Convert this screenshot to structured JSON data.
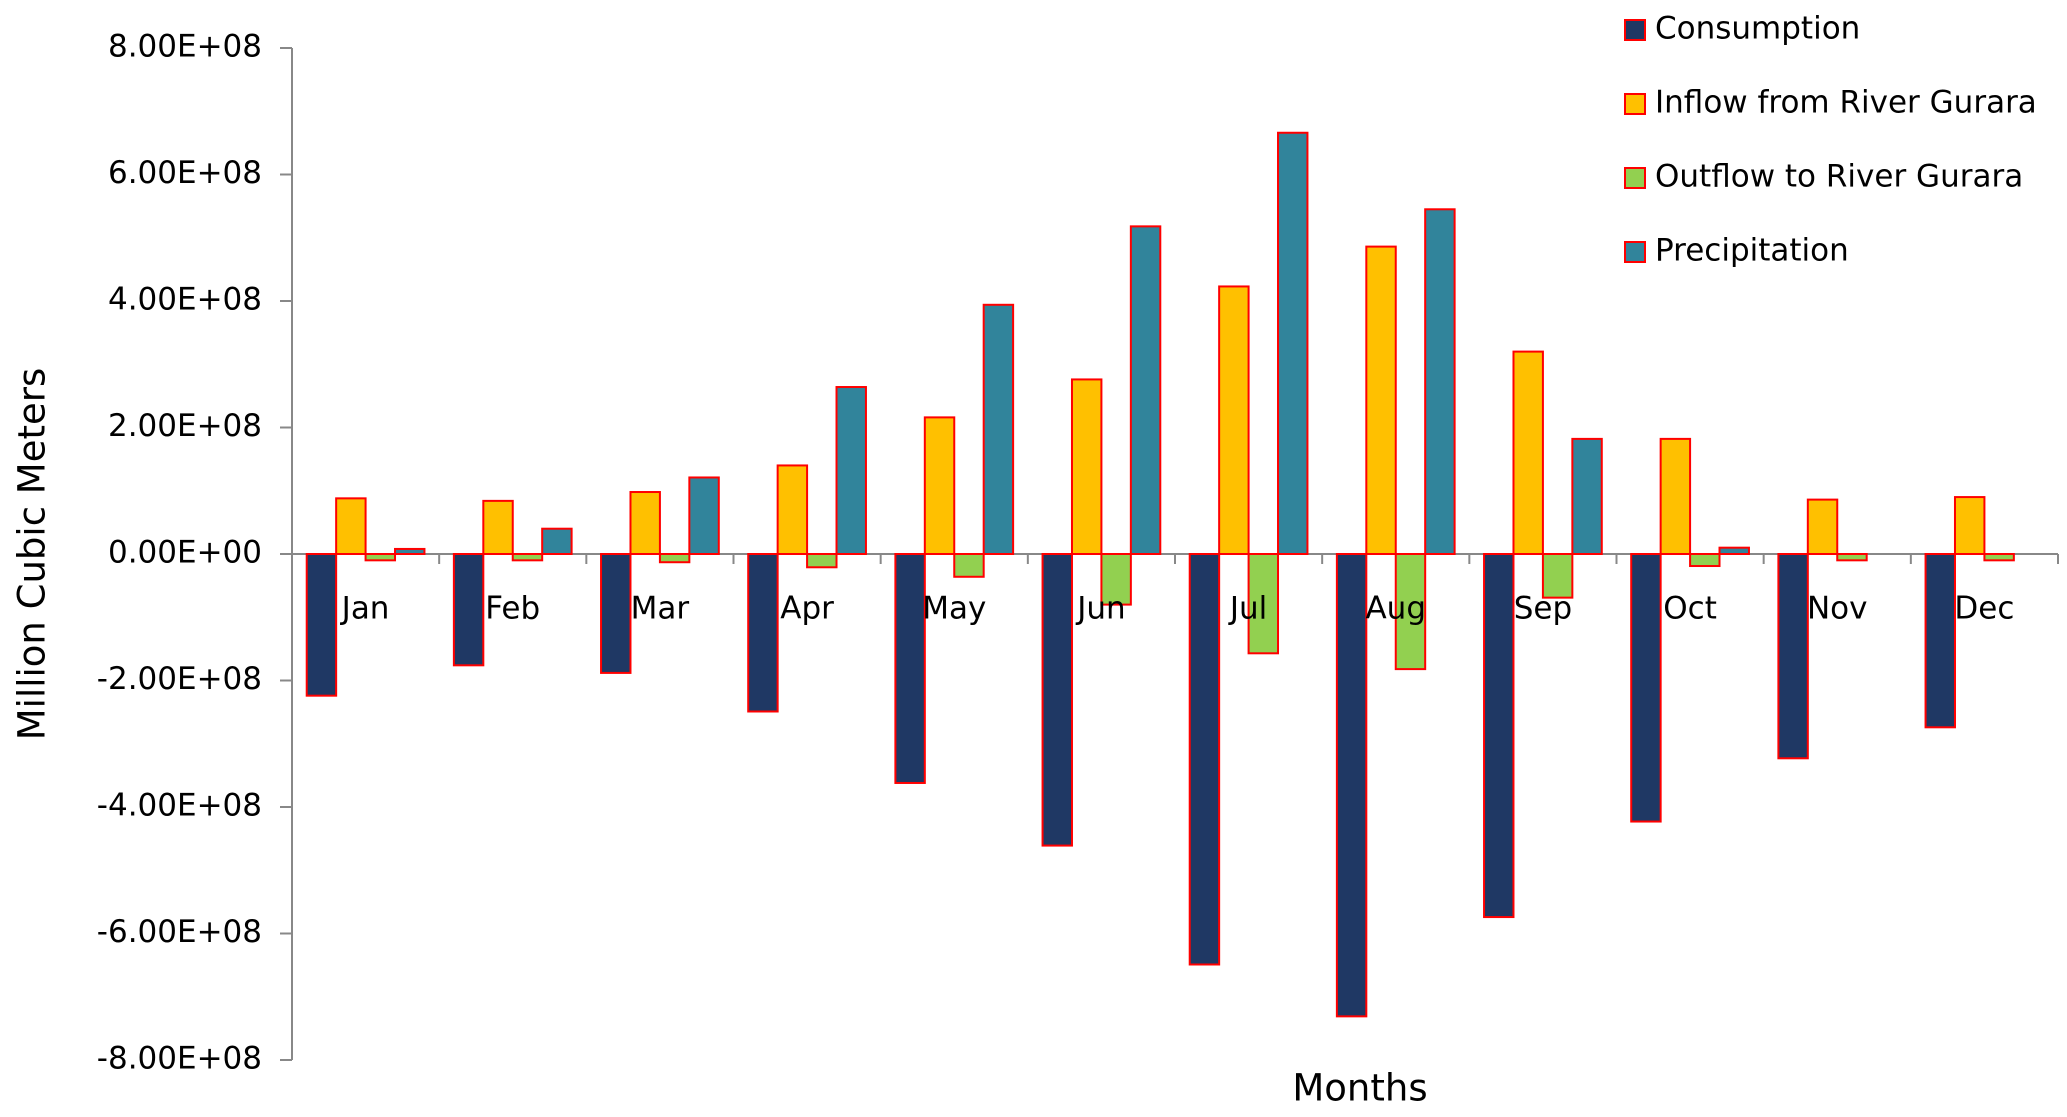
{
  "chart_data": {
    "type": "bar",
    "x_label": "Months",
    "y_label": "Million Cubic Meters",
    "categories": [
      "Jan",
      "Feb",
      "Mar",
      "Apr",
      "May",
      "Jun",
      "Jul",
      "Aug",
      "Sep",
      "Oct",
      "Nov",
      "Dec"
    ],
    "series": [
      {
        "name": "Consumption",
        "color": "#1f3864",
        "values": [
          -224000000,
          -176000000,
          -188000000,
          -249000000,
          -362000000,
          -461000000,
          -649000000,
          -731000000,
          -574000000,
          -423000000,
          -323000000,
          -274000000
        ]
      },
      {
        "name": "Inflow from River Gurara",
        "color": "#ffc000",
        "values": [
          88000000,
          84000000,
          98000000,
          140000000,
          216000000,
          276000000,
          423000000,
          486000000,
          320000000,
          182000000,
          86000000,
          90000000
        ]
      },
      {
        "name": "Outflow to River Gurara",
        "color": "#92d050",
        "values": [
          -10000000,
          -10000000,
          -13000000,
          -21000000,
          -36000000,
          -80000000,
          -157000000,
          -182000000,
          -69000000,
          -19000000,
          -10000000,
          -10000000
        ]
      },
      {
        "name": "Precipitation",
        "color": "#31849b",
        "values": [
          8000000,
          40000000,
          121000000,
          264000000,
          394000000,
          518000000,
          666000000,
          545000000,
          182000000,
          10000000,
          0,
          0
        ]
      }
    ],
    "bar_edge_color": "#ff0000",
    "ylim": [
      -800000000,
      800000000
    ],
    "yticks": [
      {
        "value": -800000000,
        "label": "-8.00E+08"
      },
      {
        "value": -600000000,
        "label": "-6.00E+08"
      },
      {
        "value": -400000000,
        "label": "-4.00E+08"
      },
      {
        "value": -200000000,
        "label": "-2.00E+08"
      },
      {
        "value": 0,
        "label": "0.00E+00"
      },
      {
        "value": 200000000,
        "label": "2.00E+08"
      },
      {
        "value": 400000000,
        "label": "4.00E+08"
      },
      {
        "value": 600000000,
        "label": "6.00E+08"
      },
      {
        "value": 800000000,
        "label": "8.00E+08"
      }
    ],
    "grid": false,
    "legend_position": "upper-right"
  }
}
